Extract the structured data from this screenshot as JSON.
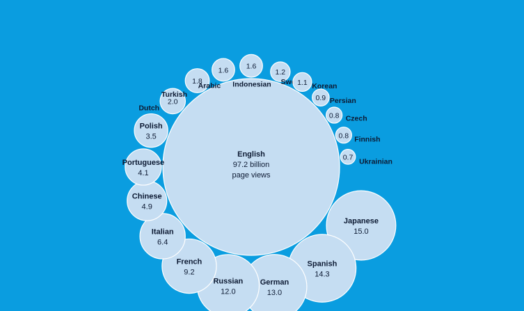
{
  "chart_data": {
    "type": "bubble",
    "unit": "billion page views",
    "center": {
      "label": "English",
      "value_label": "97.2 billion",
      "unit_label": "page views",
      "value": 97.2
    },
    "items": [
      {
        "label": "Japanese",
        "value": 15.0,
        "value_label": "15.0"
      },
      {
        "label": "Spanish",
        "value": 14.3,
        "value_label": "14.3"
      },
      {
        "label": "German",
        "value": 13.0,
        "value_label": "13.0"
      },
      {
        "label": "Russian",
        "value": 12.0,
        "value_label": "12.0"
      },
      {
        "label": "French",
        "value": 9.2,
        "value_label": "9.2"
      },
      {
        "label": "Italian",
        "value": 6.4,
        "value_label": "6.4"
      },
      {
        "label": "Chinese",
        "value": 4.9,
        "value_label": "4.9"
      },
      {
        "label": "Portuguese",
        "value": 4.1,
        "value_label": "4.1"
      },
      {
        "label": "Polish",
        "value": 3.5,
        "value_label": "3.5"
      },
      {
        "label": "Dutch",
        "value": 2.0,
        "value_label": "2.0"
      },
      {
        "label": "Turkish",
        "value": 1.8,
        "value_label": "1.8"
      },
      {
        "label": "Arabic",
        "value": 1.6,
        "value_label": "1.6"
      },
      {
        "label": "Indonesian",
        "value": 1.6,
        "value_label": "1.6"
      },
      {
        "label": "Swedish",
        "value": 1.2,
        "value_label": "1.2"
      },
      {
        "label": "Korean",
        "value": 1.1,
        "value_label": "1.1"
      },
      {
        "label": "Persian",
        "value": 0.9,
        "value_label": "0.9"
      },
      {
        "label": "Czech",
        "value": 0.8,
        "value_label": "0.8"
      },
      {
        "label": "Finnish",
        "value": 0.8,
        "value_label": "0.8"
      },
      {
        "label": "Ukrainian",
        "value": 0.7,
        "value_label": "0.7"
      }
    ]
  },
  "colors": {
    "background": "#0a9de0",
    "bubble": "#c5ddf2",
    "text": "#0d1a33"
  }
}
